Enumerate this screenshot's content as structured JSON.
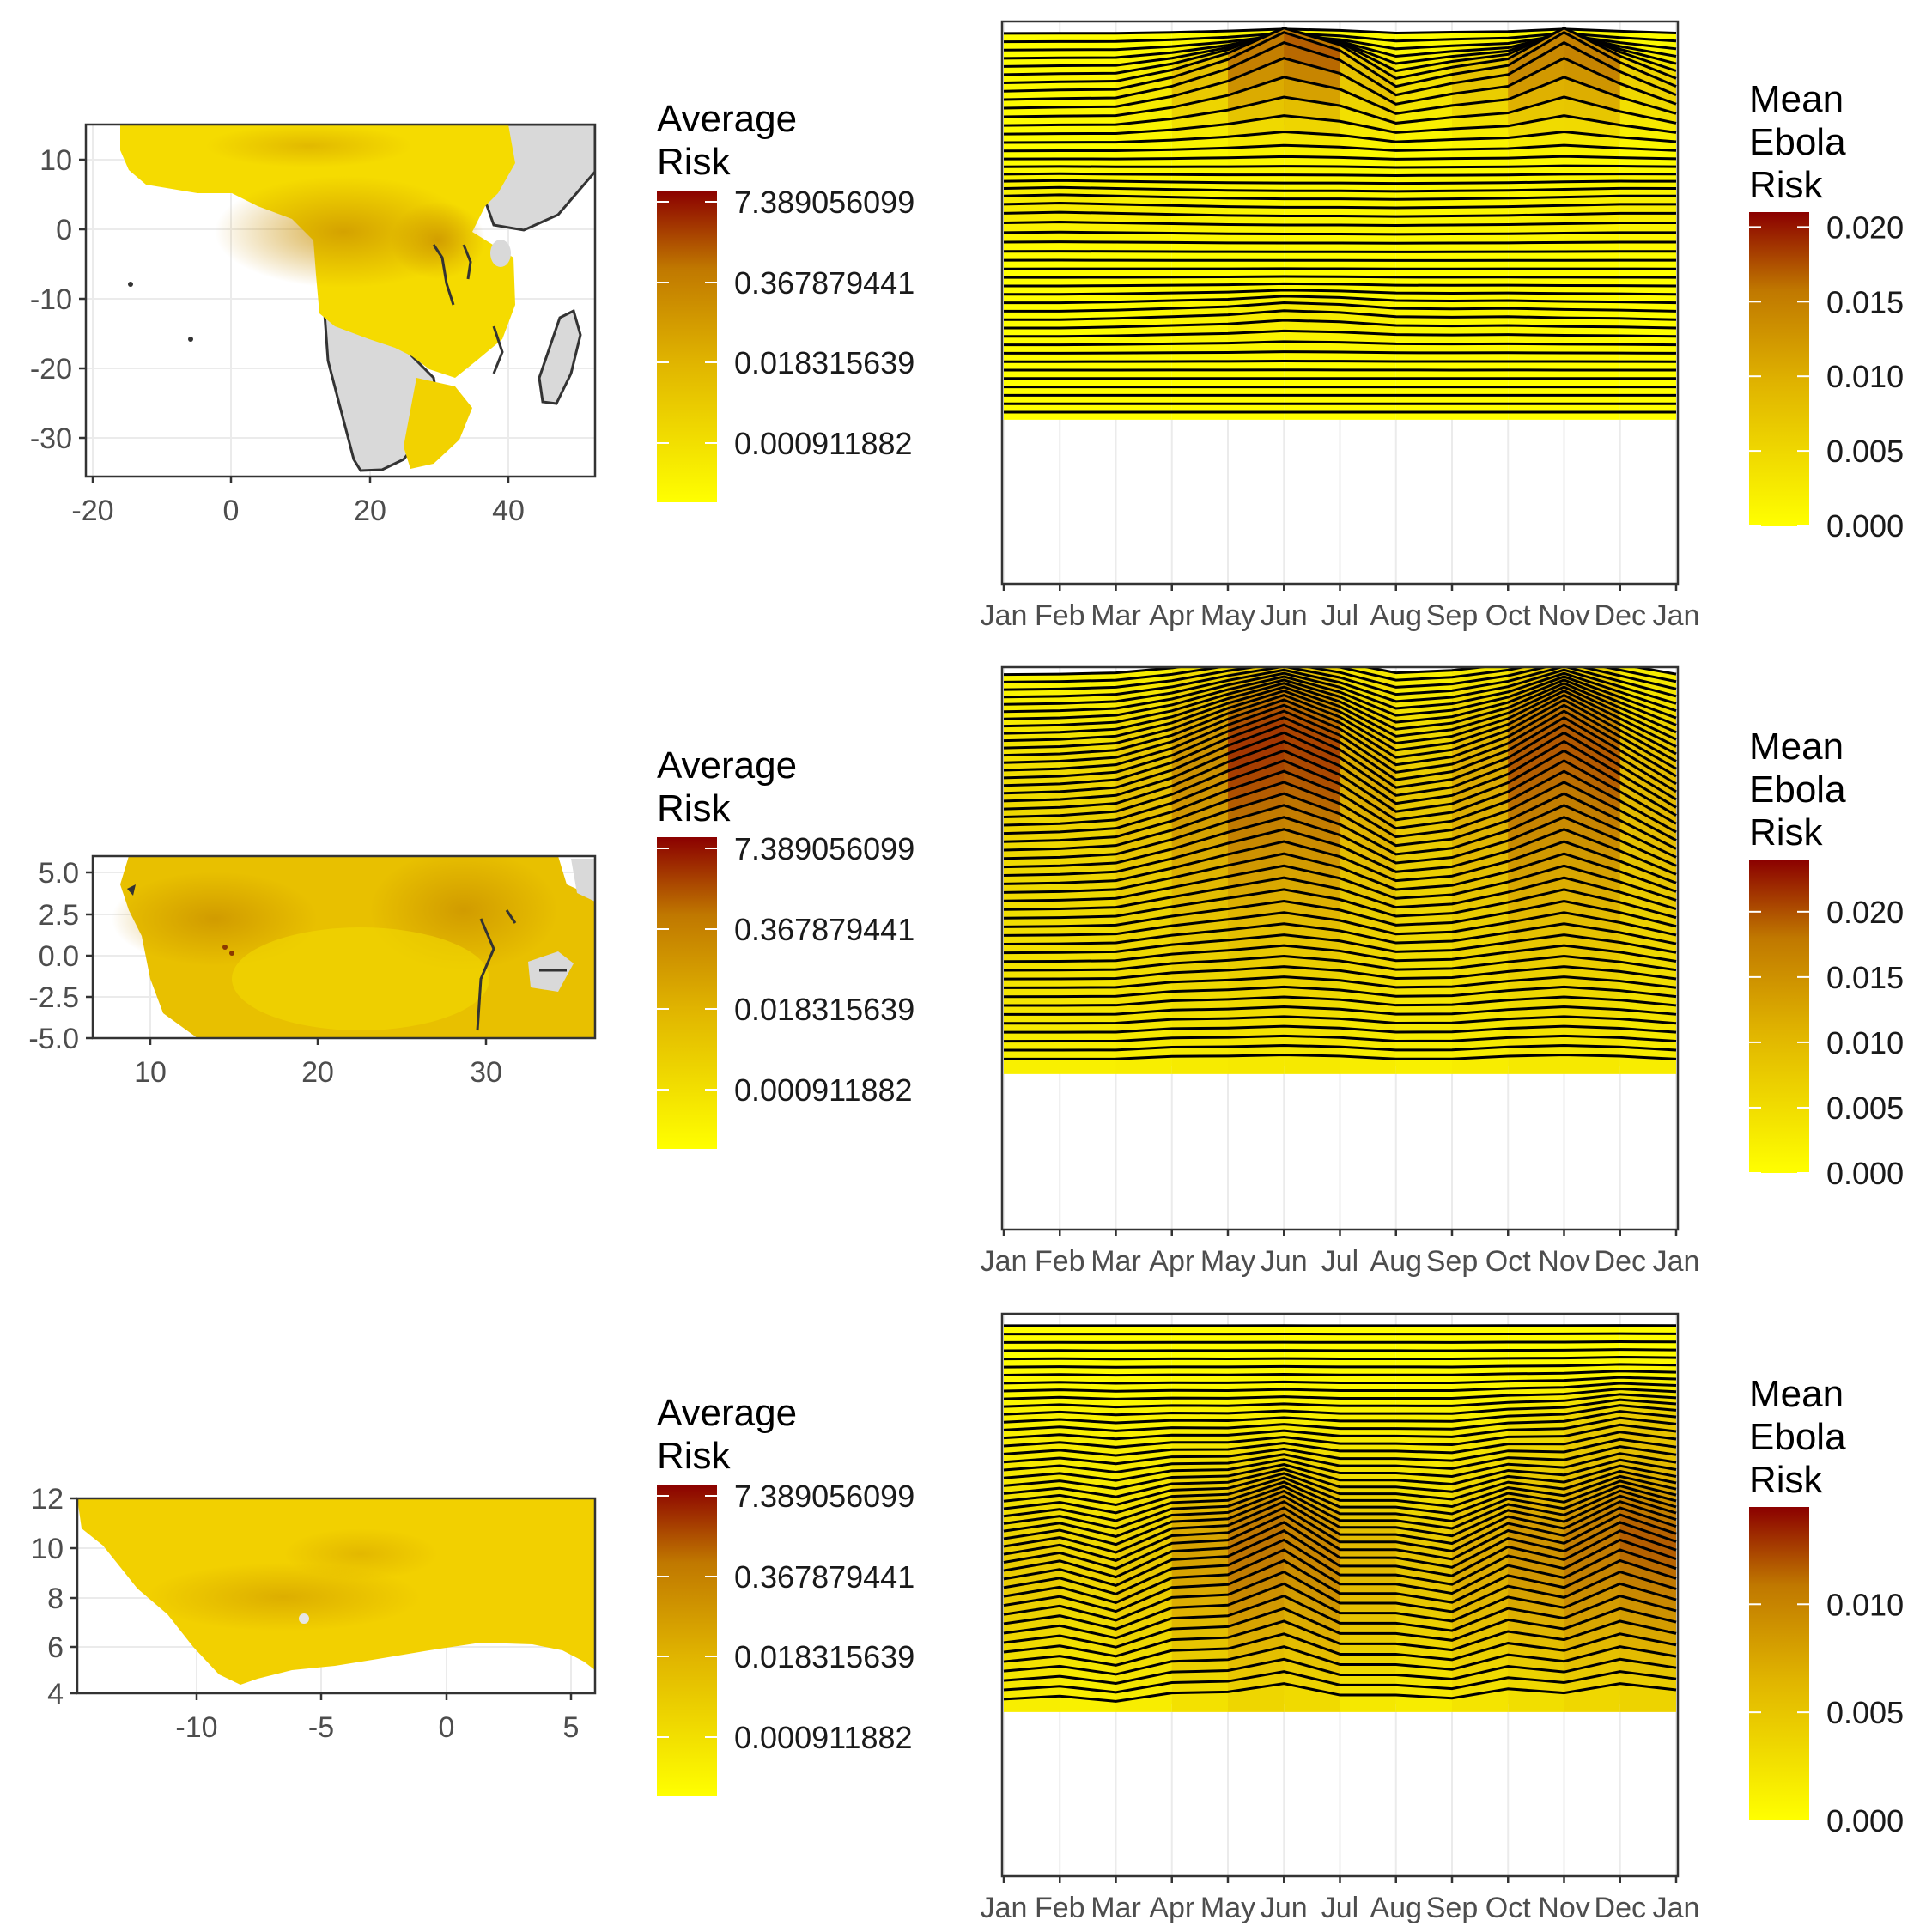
{
  "colors": {
    "low": "#ffff00",
    "mid": "#d4a000",
    "high": "#8b0000",
    "land": "#d9d9d9",
    "grid": "#ebebeb",
    "line": "#000000"
  },
  "chart_data": [
    {
      "type": "heatmap",
      "title": "",
      "legend_title": [
        "Average",
        "Risk"
      ],
      "legend_ticks": [
        "7.389056099",
        "0.367879441",
        "0.018315639",
        "0.000911882"
      ],
      "x_ticks": [
        "-20",
        "0",
        "20",
        "40"
      ],
      "y_ticks": [
        "10",
        "0",
        "-10",
        "-20",
        "-30"
      ],
      "xlim": [
        -22,
        52
      ],
      "ylim": [
        -36,
        15
      ],
      "grid": true
    },
    {
      "type": "area",
      "title": "",
      "legend_title": [
        "Mean",
        "Ebola",
        "Risk"
      ],
      "legend_ticks": [
        "0.020",
        "0.015",
        "0.010",
        "0.005",
        "0.000"
      ],
      "legend_range": [
        0,
        0.021
      ],
      "months": [
        "Jan",
        "Feb",
        "Mar",
        "Apr",
        "May",
        "Jun",
        "Jul",
        "Aug",
        "Sep",
        "Oct",
        "Nov",
        "Dec",
        "Jan"
      ],
      "grid": true
    },
    {
      "type": "heatmap",
      "title": "",
      "legend_title": [
        "Average",
        "Risk"
      ],
      "legend_ticks": [
        "7.389056099",
        "0.367879441",
        "0.018315639",
        "0.000911882"
      ],
      "x_ticks": [
        "10",
        "20",
        "30"
      ],
      "y_ticks": [
        "5.0",
        "2.5",
        "0.0",
        "-2.5",
        "-5.0"
      ],
      "xlim": [
        6.5,
        36.5
      ],
      "ylim": [
        -5,
        6
      ],
      "grid": true
    },
    {
      "type": "area",
      "title": "",
      "legend_title": [
        "Mean",
        "Ebola",
        "Risk"
      ],
      "legend_ticks": [
        "0.020",
        "0.015",
        "0.010",
        "0.005",
        "0.000"
      ],
      "legend_range": [
        0,
        0.024
      ],
      "months": [
        "Jan",
        "Feb",
        "Mar",
        "Apr",
        "May",
        "Jun",
        "Jul",
        "Aug",
        "Sep",
        "Oct",
        "Nov",
        "Dec",
        "Jan"
      ],
      "grid": true
    },
    {
      "type": "heatmap",
      "title": "",
      "legend_title": [
        "Average",
        "Risk"
      ],
      "legend_ticks": [
        "7.389056099",
        "0.367879441",
        "0.018315639",
        "0.000911882"
      ],
      "x_ticks": [
        "-10",
        "-5",
        "0",
        "5"
      ],
      "y_ticks": [
        "12",
        "10",
        "8",
        "6",
        "4"
      ],
      "xlim": [
        -15,
        6
      ],
      "ylim": [
        4,
        12
      ],
      "grid": true
    },
    {
      "type": "area",
      "title": "",
      "legend_title": [
        "Mean",
        "Ebola",
        "Risk"
      ],
      "legend_ticks": [
        "0.010",
        "0.005",
        "0.000"
      ],
      "legend_range": [
        0,
        0.0145
      ],
      "months": [
        "Jan",
        "Feb",
        "Mar",
        "Apr",
        "May",
        "Jun",
        "Jul",
        "Aug",
        "Sep",
        "Oct",
        "Nov",
        "Dec",
        "Jan"
      ],
      "grid": true
    }
  ]
}
